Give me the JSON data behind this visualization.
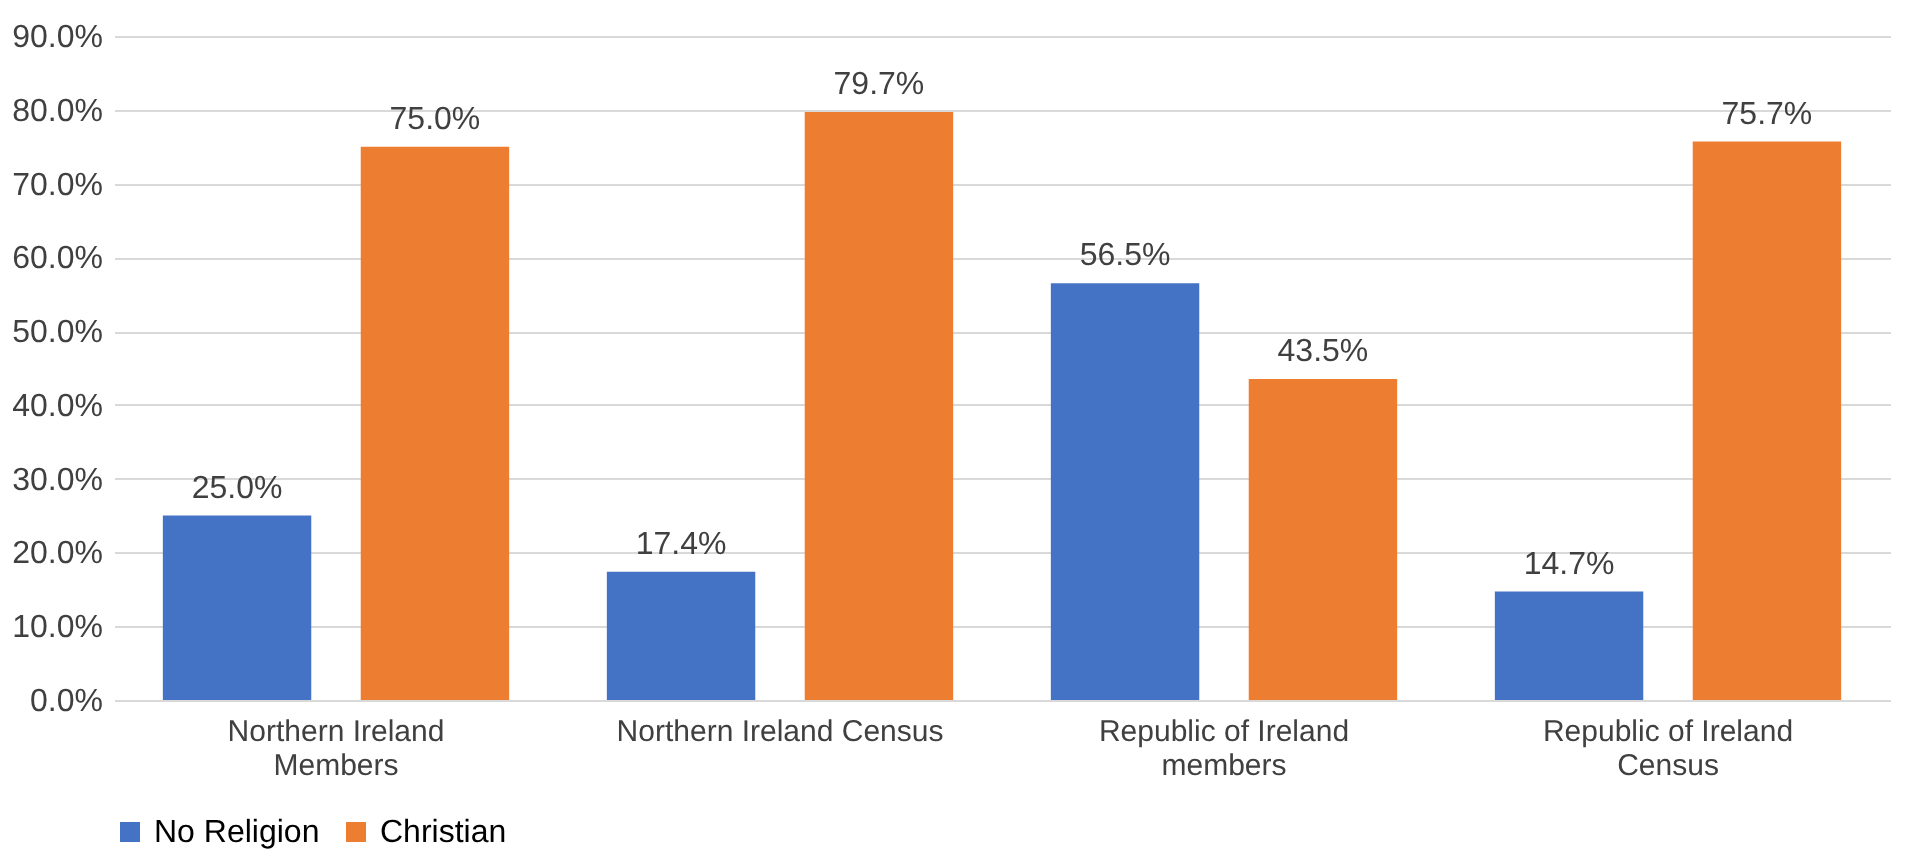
{
  "chart_data": {
    "type": "bar",
    "categories": [
      "Northern Ireland Members",
      "Northern Ireland Census",
      "Republic of Ireland members",
      "Republic of Ireland Census"
    ],
    "series": [
      {
        "name": "No Religion",
        "color": "#4472c4",
        "values": [
          25.0,
          17.4,
          56.5,
          14.7
        ],
        "value_labels": [
          "25.0%",
          "17.4%",
          "56.5%",
          "14.7%"
        ]
      },
      {
        "name": "Christian",
        "color": "#ed7d31",
        "values": [
          75.0,
          79.7,
          43.5,
          75.7
        ],
        "value_labels": [
          "75.0%",
          "79.7%",
          "43.5%",
          "75.7%"
        ]
      }
    ],
    "ylim": [
      0,
      90
    ],
    "yticks": [
      {
        "value": 0,
        "label": "0.0%"
      },
      {
        "value": 10,
        "label": "10.0%"
      },
      {
        "value": 20,
        "label": "20.0%"
      },
      {
        "value": 30,
        "label": "30.0%"
      },
      {
        "value": 40,
        "label": "40.0%"
      },
      {
        "value": 50,
        "label": "50.0%"
      },
      {
        "value": 60,
        "label": "60.0%"
      },
      {
        "value": 70,
        "label": "70.0%"
      },
      {
        "value": 80,
        "label": "80.0%"
      },
      {
        "value": 90,
        "label": "90.0%"
      }
    ],
    "grid": "y",
    "legend": "bottom"
  }
}
